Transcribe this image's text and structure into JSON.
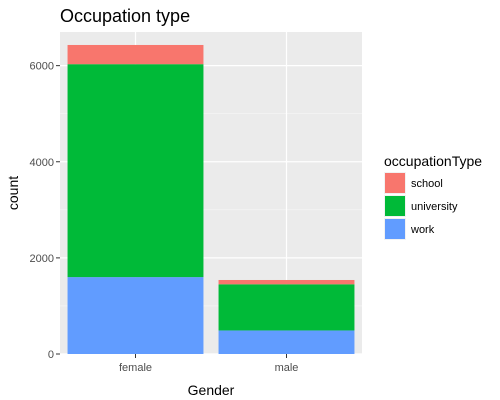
{
  "chart_data": {
    "type": "bar",
    "stacked": true,
    "title": "Occupation type",
    "xlabel": "Gender",
    "ylabel": "count",
    "categories": [
      "female",
      "male"
    ],
    "ylim": [
      0,
      6700
    ],
    "yticks": [
      0,
      2000,
      4000,
      6000
    ],
    "ytick_labels": [
      "0",
      "2000",
      "4000",
      "6000"
    ],
    "grid": true,
    "legend": {
      "title": "occupationType",
      "position": "right"
    },
    "series": [
      {
        "name": "work",
        "color": "#619CFF",
        "values": [
          1600,
          490
        ]
      },
      {
        "name": "university",
        "color": "#00BA38",
        "values": [
          4430,
          960
        ]
      },
      {
        "name": "school",
        "color": "#F8766D",
        "values": [
          400,
          90
        ]
      }
    ],
    "legend_order": [
      "school",
      "university",
      "work"
    ]
  }
}
